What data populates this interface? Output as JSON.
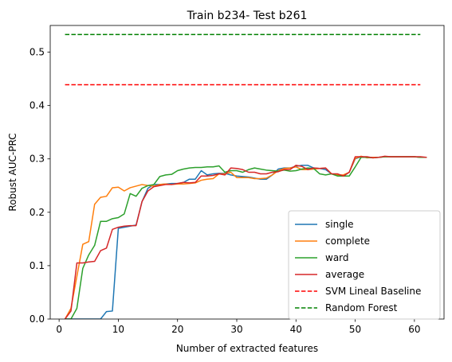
{
  "chart_data": {
    "type": "line",
    "title": "Train b234- Test b261",
    "xlabel": "Number of extracted features",
    "ylabel": "Robust AUC-PRC",
    "xlim": [
      -1.5,
      65
    ],
    "ylim": [
      0,
      0.55
    ],
    "xticks": [
      0,
      10,
      20,
      30,
      40,
      50,
      60
    ],
    "yticks": [
      0.0,
      0.1,
      0.2,
      0.3,
      0.4,
      0.5
    ],
    "ytick_labels": [
      "0.0",
      "0.1",
      "0.2",
      "0.3",
      "0.4",
      "0.5"
    ],
    "legend_position": "lower right",
    "x": [
      1,
      2,
      3,
      4,
      5,
      6,
      7,
      8,
      9,
      10,
      11,
      12,
      13,
      14,
      15,
      16,
      17,
      18,
      19,
      20,
      21,
      22,
      23,
      24,
      25,
      26,
      27,
      28,
      29,
      30,
      31,
      32,
      33,
      34,
      35,
      36,
      37,
      38,
      39,
      40,
      41,
      42,
      43,
      44,
      45,
      46,
      47,
      48,
      49,
      50,
      51,
      52,
      53,
      54,
      55,
      56,
      57,
      58,
      59,
      60,
      61,
      62
    ],
    "series": [
      {
        "name": "single",
        "color": "#1f77b4",
        "style": "solid",
        "values": [
          0.0,
          0.0,
          0.0,
          0.0,
          0.0,
          0.0,
          0.0,
          0.014,
          0.015,
          0.17,
          0.172,
          0.174,
          0.176,
          0.22,
          0.245,
          0.252,
          0.252,
          0.253,
          0.254,
          0.254,
          0.256,
          0.262,
          0.262,
          0.278,
          0.27,
          0.272,
          0.273,
          0.273,
          0.27,
          0.268,
          0.267,
          0.266,
          0.264,
          0.262,
          0.262,
          0.27,
          0.281,
          0.283,
          0.283,
          0.286,
          0.288,
          0.288,
          0.283,
          0.282,
          0.28,
          0.272,
          0.27,
          0.268,
          0.275,
          0.3,
          0.304,
          0.303,
          0.303,
          0.303,
          0.304,
          0.304,
          0.304,
          0.304,
          0.304,
          0.304,
          0.303,
          0.303
        ]
      },
      {
        "name": "complete",
        "color": "#ff7f0e",
        "style": "solid",
        "values": [
          0.0,
          0.02,
          0.08,
          0.14,
          0.145,
          0.215,
          0.228,
          0.23,
          0.246,
          0.247,
          0.24,
          0.246,
          0.249,
          0.252,
          0.25,
          0.249,
          0.252,
          0.253,
          0.252,
          0.253,
          0.253,
          0.254,
          0.255,
          0.26,
          0.262,
          0.263,
          0.272,
          0.272,
          0.275,
          0.265,
          0.265,
          0.265,
          0.263,
          0.263,
          0.264,
          0.27,
          0.278,
          0.282,
          0.283,
          0.285,
          0.28,
          0.28,
          0.281,
          0.282,
          0.283,
          0.272,
          0.27,
          0.27,
          0.275,
          0.301,
          0.305,
          0.302,
          0.303,
          0.303,
          0.304,
          0.304,
          0.304,
          0.304,
          0.304,
          0.304,
          0.303,
          0.303
        ]
      },
      {
        "name": "ward",
        "color": "#2ca02c",
        "style": "solid",
        "values": [
          0.0,
          0.0,
          0.02,
          0.095,
          0.12,
          0.138,
          0.183,
          0.183,
          0.188,
          0.19,
          0.197,
          0.235,
          0.23,
          0.245,
          0.25,
          0.252,
          0.267,
          0.27,
          0.271,
          0.278,
          0.281,
          0.283,
          0.284,
          0.284,
          0.285,
          0.285,
          0.287,
          0.275,
          0.278,
          0.278,
          0.275,
          0.28,
          0.283,
          0.281,
          0.279,
          0.278,
          0.277,
          0.279,
          0.277,
          0.278,
          0.281,
          0.283,
          0.282,
          0.272,
          0.27,
          0.272,
          0.268,
          0.268,
          0.268,
          0.285,
          0.303,
          0.303,
          0.302,
          0.303,
          0.304,
          0.304,
          0.304,
          0.304,
          0.304,
          0.304,
          0.303,
          0.303
        ]
      },
      {
        "name": "average",
        "color": "#d62728",
        "style": "solid",
        "values": [
          0.0,
          0.015,
          0.105,
          0.105,
          0.107,
          0.108,
          0.128,
          0.133,
          0.168,
          0.172,
          0.174,
          0.175,
          0.175,
          0.22,
          0.24,
          0.248,
          0.25,
          0.252,
          0.252,
          0.254,
          0.256,
          0.255,
          0.256,
          0.268,
          0.268,
          0.269,
          0.272,
          0.27,
          0.283,
          0.282,
          0.28,
          0.275,
          0.275,
          0.272,
          0.272,
          0.275,
          0.276,
          0.28,
          0.28,
          0.288,
          0.286,
          0.28,
          0.283,
          0.282,
          0.283,
          0.272,
          0.272,
          0.268,
          0.275,
          0.304,
          0.304,
          0.304,
          0.302,
          0.303,
          0.305,
          0.304,
          0.304,
          0.304,
          0.304,
          0.304,
          0.304,
          0.303
        ]
      },
      {
        "name": "SVM Lineal Baseline",
        "color": "#ff0000",
        "style": "dashed",
        "x": [
          1,
          61
        ],
        "values": [
          0.439,
          0.439
        ]
      },
      {
        "name": "Random Forest",
        "color": "#008000",
        "style": "dashed",
        "x": [
          1,
          61
        ],
        "values": [
          0.533,
          0.533
        ]
      }
    ]
  }
}
